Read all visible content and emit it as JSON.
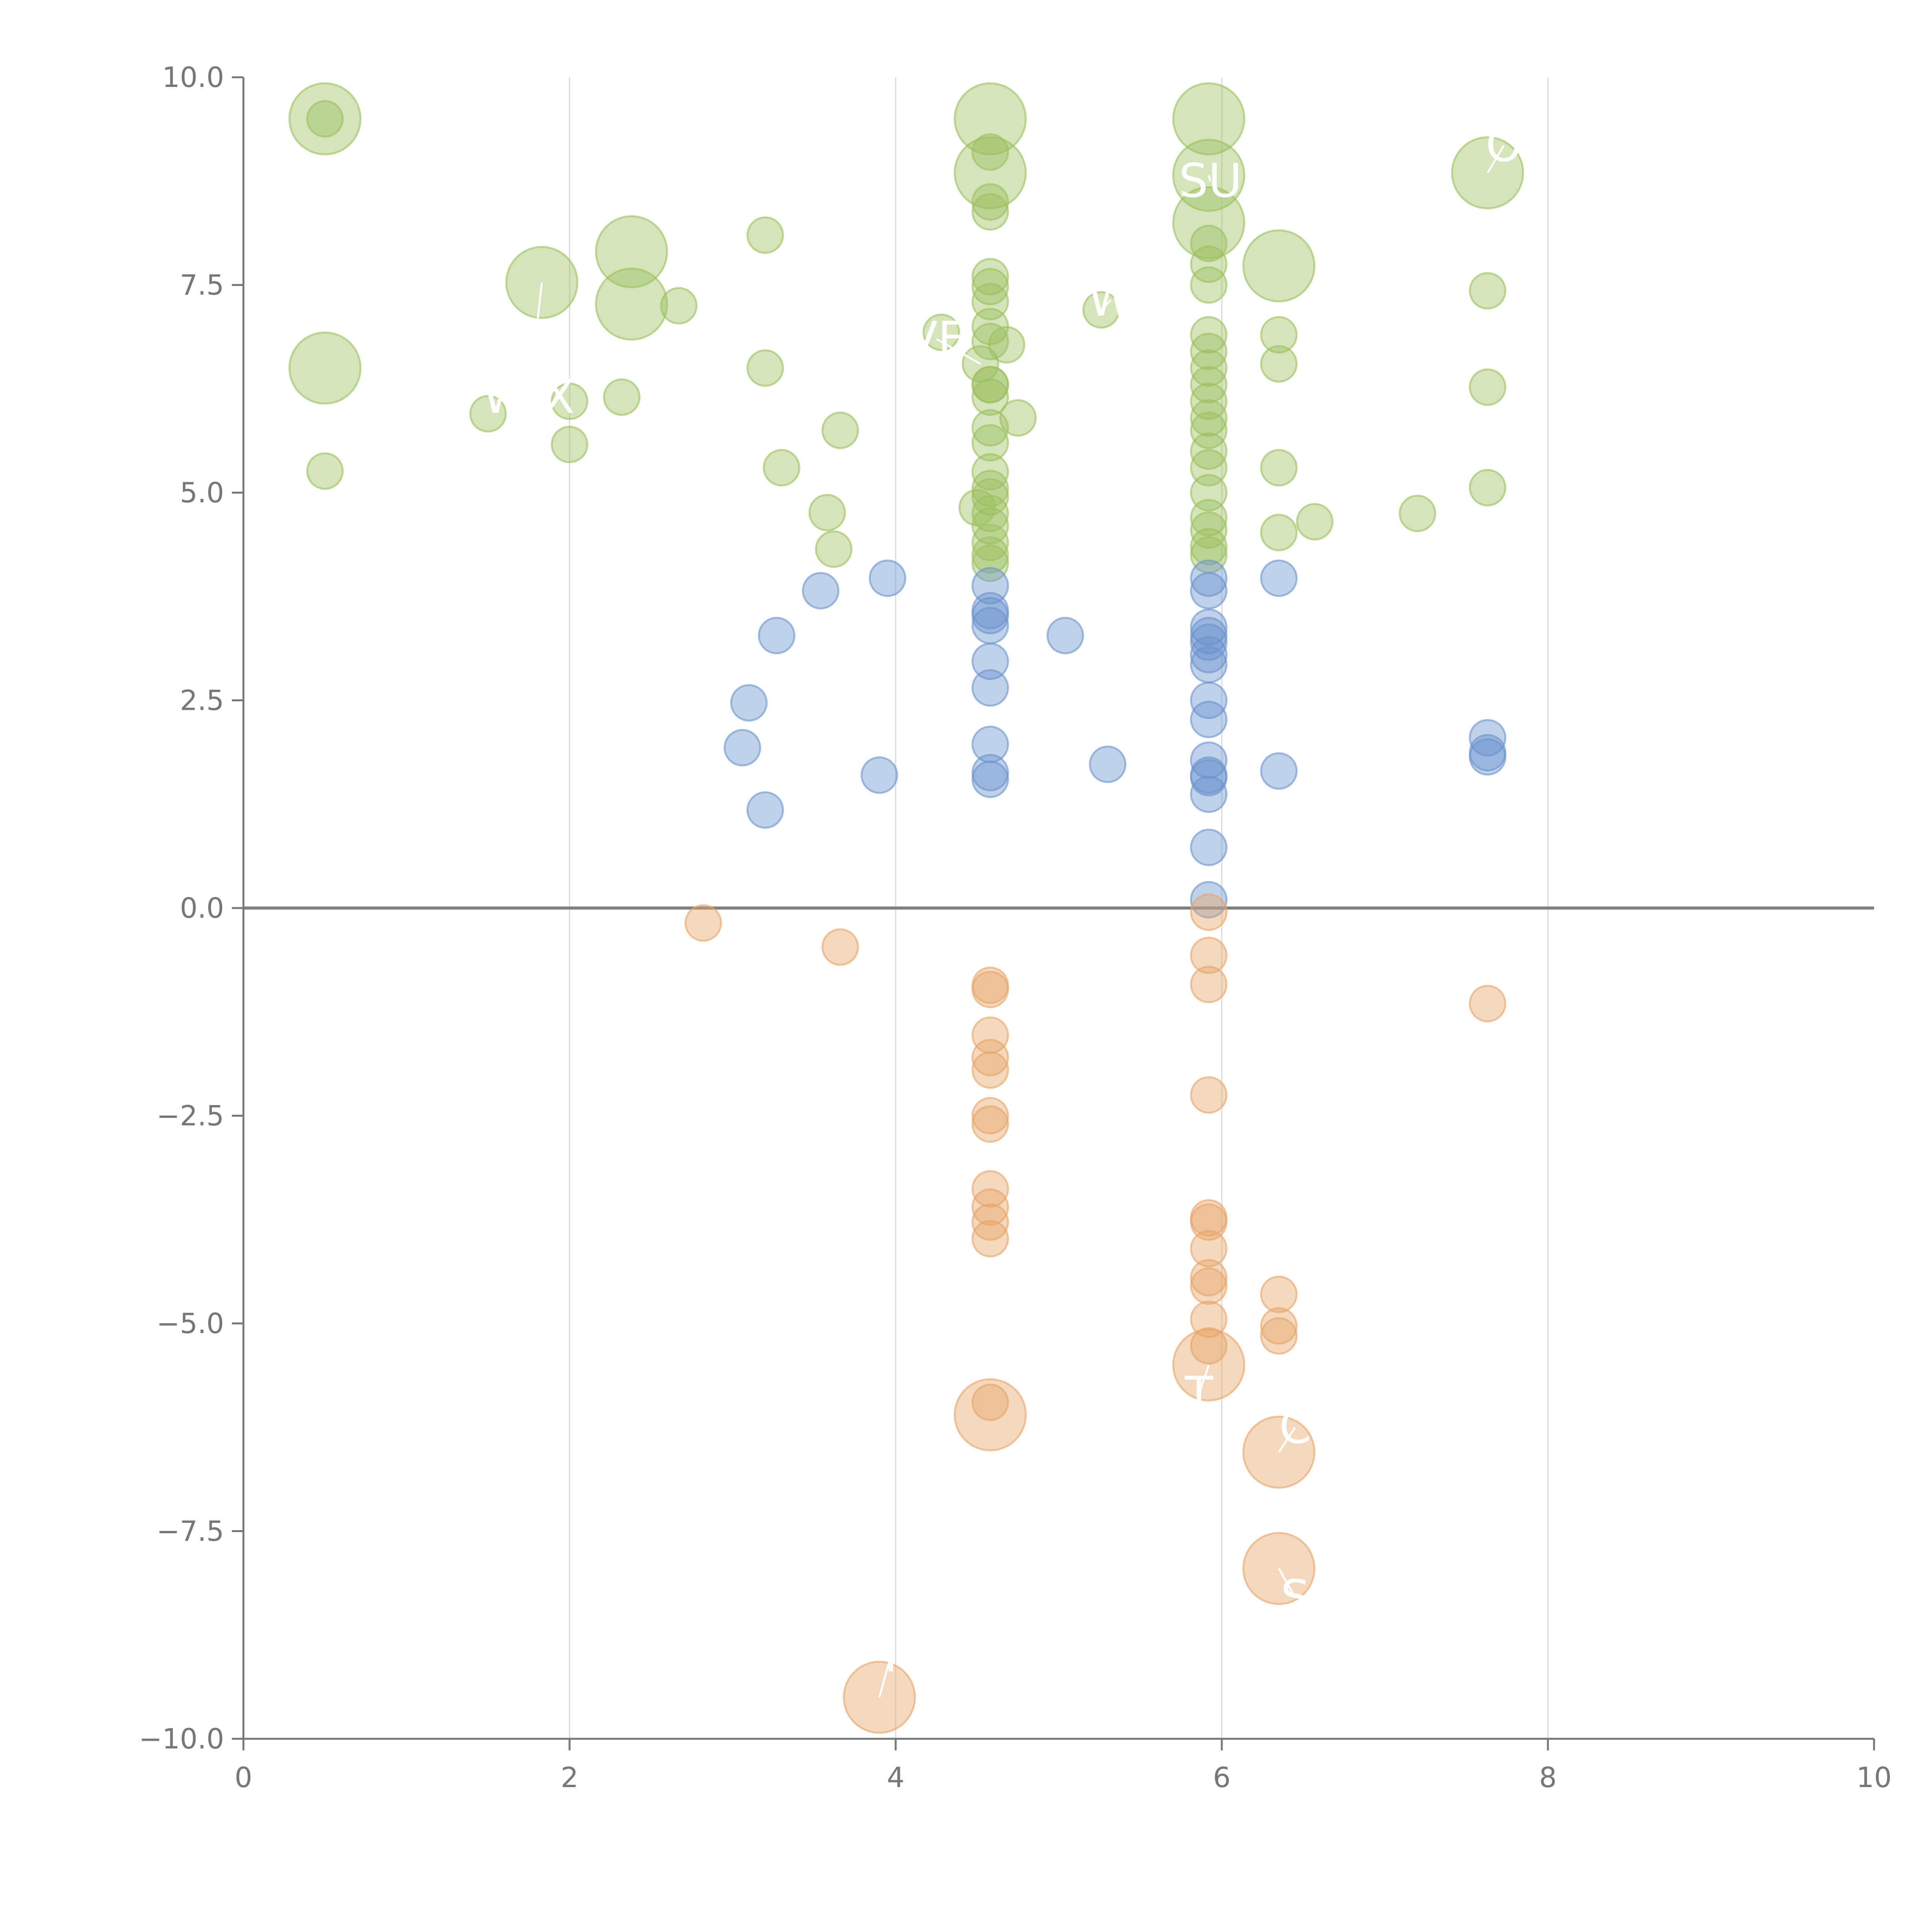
{
  "chart_data": {
    "type": "scatter",
    "title": "",
    "xlabel": "",
    "ylabel": "",
    "xlim": [
      0,
      10
    ],
    "ylim": [
      -10,
      10
    ],
    "x_ticks": [
      "0",
      "2",
      "4",
      "6",
      "8",
      "10"
    ],
    "y_ticks": [
      "10.0",
      "7.5",
      "5.0",
      "2.5",
      "0.0",
      "−2.5",
      "−5.0",
      "−7.5",
      "−10.0"
    ],
    "grid": "vertical lines at x ticks",
    "reference_line": {
      "y": 0
    },
    "colors": {
      "high": "#9bbf5c",
      "mid": "#6a92cc",
      "low": "#e8a467",
      "axis": "#777777",
      "grid": "#d9d9d9",
      "zero_line": "#808080"
    },
    "series": [
      {
        "group": "high",
        "points": [
          {
            "x": 0.5,
            "y": 9.5,
            "size": 3
          },
          {
            "x": 0.5,
            "y": 9.5,
            "size": 1
          },
          {
            "x": 0.5,
            "y": 6.5,
            "size": 3
          },
          {
            "x": 0.5,
            "y": 5.26,
            "size": 1
          },
          {
            "x": 1.5,
            "y": 5.95,
            "size": 1
          },
          {
            "x": 1.83,
            "y": 7.53,
            "size": 3
          },
          {
            "x": 2.0,
            "y": 6.1,
            "size": 1
          },
          {
            "x": 2.0,
            "y": 5.58,
            "size": 1
          },
          {
            "x": 2.32,
            "y": 6.15,
            "size": 1
          },
          {
            "x": 2.38,
            "y": 7.9,
            "size": 3
          },
          {
            "x": 2.38,
            "y": 7.27,
            "size": 3
          },
          {
            "x": 2.67,
            "y": 7.25,
            "size": 1
          },
          {
            "x": 3.2,
            "y": 8.1,
            "size": 1
          },
          {
            "x": 3.2,
            "y": 6.5,
            "size": 1
          },
          {
            "x": 3.3,
            "y": 5.3,
            "size": 1
          },
          {
            "x": 3.58,
            "y": 4.76,
            "size": 1
          },
          {
            "x": 3.62,
            "y": 4.32,
            "size": 1
          },
          {
            "x": 3.66,
            "y": 5.75,
            "size": 1
          },
          {
            "x": 4.28,
            "y": 6.93,
            "size": 1
          },
          {
            "x": 4.5,
            "y": 4.82,
            "size": 1
          },
          {
            "x": 4.52,
            "y": 6.55,
            "size": 1
          },
          {
            "x": 4.58,
            "y": 9.5,
            "size": 3
          },
          {
            "x": 4.58,
            "y": 8.85,
            "size": 3
          },
          {
            "x": 4.58,
            "y": 9.1,
            "size": 1
          },
          {
            "x": 4.58,
            "y": 8.5,
            "size": 1
          },
          {
            "x": 4.58,
            "y": 8.38,
            "size": 1
          },
          {
            "x": 4.58,
            "y": 7.6,
            "size": 1
          },
          {
            "x": 4.58,
            "y": 7.48,
            "size": 1
          },
          {
            "x": 4.58,
            "y": 7.3,
            "size": 1
          },
          {
            "x": 4.58,
            "y": 7.0,
            "size": 1
          },
          {
            "x": 4.58,
            "y": 6.82,
            "size": 1
          },
          {
            "x": 4.58,
            "y": 6.3,
            "size": 1
          },
          {
            "x": 4.58,
            "y": 6.15,
            "size": 1
          },
          {
            "x": 4.58,
            "y": 5.78,
            "size": 1
          },
          {
            "x": 4.58,
            "y": 5.6,
            "size": 1
          },
          {
            "x": 4.58,
            "y": 5.25,
            "size": 1
          },
          {
            "x": 4.58,
            "y": 5.05,
            "size": 1
          },
          {
            "x": 4.58,
            "y": 4.95,
            "size": 1
          },
          {
            "x": 4.58,
            "y": 4.75,
            "size": 1
          },
          {
            "x": 4.58,
            "y": 4.6,
            "size": 1
          },
          {
            "x": 4.58,
            "y": 4.4,
            "size": 1
          },
          {
            "x": 4.58,
            "y": 4.25,
            "size": 1
          },
          {
            "x": 4.58,
            "y": 4.15,
            "size": 1
          },
          {
            "x": 4.58,
            "y": 6.3,
            "size": 1
          },
          {
            "x": 4.68,
            "y": 6.78,
            "size": 1
          },
          {
            "x": 4.75,
            "y": 5.9,
            "size": 1
          },
          {
            "x": 5.26,
            "y": 7.2,
            "size": 1
          },
          {
            "x": 5.92,
            "y": 9.5,
            "size": 3
          },
          {
            "x": 5.92,
            "y": 8.82,
            "size": 3
          },
          {
            "x": 5.92,
            "y": 8.25,
            "size": 3
          },
          {
            "x": 5.92,
            "y": 8.0,
            "size": 1
          },
          {
            "x": 5.92,
            "y": 7.75,
            "size": 1
          },
          {
            "x": 5.92,
            "y": 7.5,
            "size": 1
          },
          {
            "x": 5.92,
            "y": 6.9,
            "size": 1
          },
          {
            "x": 5.92,
            "y": 6.7,
            "size": 1
          },
          {
            "x": 5.92,
            "y": 6.5,
            "size": 1
          },
          {
            "x": 5.92,
            "y": 6.3,
            "size": 1
          },
          {
            "x": 5.92,
            "y": 6.1,
            "size": 1
          },
          {
            "x": 5.92,
            "y": 5.9,
            "size": 1
          },
          {
            "x": 5.92,
            "y": 5.75,
            "size": 1
          },
          {
            "x": 5.92,
            "y": 5.5,
            "size": 1
          },
          {
            "x": 5.92,
            "y": 5.3,
            "size": 1
          },
          {
            "x": 5.92,
            "y": 5.0,
            "size": 1
          },
          {
            "x": 5.92,
            "y": 4.7,
            "size": 1
          },
          {
            "x": 5.92,
            "y": 4.55,
            "size": 1
          },
          {
            "x": 5.92,
            "y": 4.35,
            "size": 1
          },
          {
            "x": 5.92,
            "y": 4.25,
            "size": 1
          },
          {
            "x": 6.35,
            "y": 7.73,
            "size": 3
          },
          {
            "x": 6.35,
            "y": 6.9,
            "size": 1
          },
          {
            "x": 6.35,
            "y": 6.55,
            "size": 1
          },
          {
            "x": 6.35,
            "y": 5.3,
            "size": 1
          },
          {
            "x": 6.35,
            "y": 4.52,
            "size": 1
          },
          {
            "x": 6.57,
            "y": 4.65,
            "size": 1
          },
          {
            "x": 7.2,
            "y": 4.75,
            "size": 1
          },
          {
            "x": 7.63,
            "y": 8.85,
            "size": 3
          },
          {
            "x": 7.63,
            "y": 7.43,
            "size": 1
          },
          {
            "x": 7.63,
            "y": 6.27,
            "size": 1
          },
          {
            "x": 7.63,
            "y": 5.06,
            "size": 1
          }
        ]
      },
      {
        "group": "mid",
        "points": [
          {
            "x": 3.06,
            "y": 1.93,
            "size": 1
          },
          {
            "x": 3.1,
            "y": 2.47,
            "size": 1
          },
          {
            "x": 3.2,
            "y": 1.18,
            "size": 1
          },
          {
            "x": 3.27,
            "y": 3.28,
            "size": 1
          },
          {
            "x": 3.54,
            "y": 3.82,
            "size": 1
          },
          {
            "x": 3.9,
            "y": 1.6,
            "size": 1
          },
          {
            "x": 3.95,
            "y": 3.97,
            "size": 1
          },
          {
            "x": 4.58,
            "y": 3.88,
            "size": 1
          },
          {
            "x": 4.58,
            "y": 3.58,
            "size": 1
          },
          {
            "x": 4.58,
            "y": 3.52,
            "size": 1
          },
          {
            "x": 4.58,
            "y": 3.4,
            "size": 1
          },
          {
            "x": 4.58,
            "y": 2.97,
            "size": 1
          },
          {
            "x": 4.58,
            "y": 2.65,
            "size": 1
          },
          {
            "x": 4.58,
            "y": 1.97,
            "size": 1
          },
          {
            "x": 4.58,
            "y": 1.63,
            "size": 1
          },
          {
            "x": 4.58,
            "y": 1.55,
            "size": 1
          },
          {
            "x": 5.04,
            "y": 3.28,
            "size": 1
          },
          {
            "x": 5.3,
            "y": 1.73,
            "size": 1
          },
          {
            "x": 5.92,
            "y": 3.97,
            "size": 1
          },
          {
            "x": 5.92,
            "y": 3.82,
            "size": 1
          },
          {
            "x": 5.92,
            "y": 3.38,
            "size": 1
          },
          {
            "x": 5.92,
            "y": 3.28,
            "size": 1
          },
          {
            "x": 5.92,
            "y": 3.2,
            "size": 1
          },
          {
            "x": 5.92,
            "y": 3.05,
            "size": 1
          },
          {
            "x": 5.92,
            "y": 2.93,
            "size": 1
          },
          {
            "x": 5.92,
            "y": 2.5,
            "size": 1
          },
          {
            "x": 5.92,
            "y": 2.27,
            "size": 1
          },
          {
            "x": 5.92,
            "y": 1.78,
            "size": 1
          },
          {
            "x": 5.92,
            "y": 1.6,
            "size": 1
          },
          {
            "x": 5.92,
            "y": 1.57,
            "size": 1
          },
          {
            "x": 5.92,
            "y": 1.37,
            "size": 1
          },
          {
            "x": 5.92,
            "y": 0.73,
            "size": 1
          },
          {
            "x": 5.92,
            "y": 0.1,
            "size": 1
          },
          {
            "x": 6.35,
            "y": 3.97,
            "size": 1
          },
          {
            "x": 6.35,
            "y": 1.65,
            "size": 1
          },
          {
            "x": 7.63,
            "y": 2.05,
            "size": 1
          },
          {
            "x": 7.63,
            "y": 1.87,
            "size": 1
          },
          {
            "x": 7.63,
            "y": 1.82,
            "size": 1
          }
        ]
      },
      {
        "group": "low",
        "points": [
          {
            "x": 2.82,
            "y": -0.18,
            "size": 1
          },
          {
            "x": 3.66,
            "y": -0.47,
            "size": 1
          },
          {
            "x": 3.9,
            "y": -9.5,
            "size": 3
          },
          {
            "x": 4.58,
            "y": -0.93,
            "size": 1
          },
          {
            "x": 4.58,
            "y": -0.98,
            "size": 1
          },
          {
            "x": 4.58,
            "y": -1.53,
            "size": 1
          },
          {
            "x": 4.58,
            "y": -1.8,
            "size": 1
          },
          {
            "x": 4.58,
            "y": -1.95,
            "size": 1
          },
          {
            "x": 4.58,
            "y": -2.5,
            "size": 1
          },
          {
            "x": 4.58,
            "y": -2.6,
            "size": 1
          },
          {
            "x": 4.58,
            "y": -3.38,
            "size": 1
          },
          {
            "x": 4.58,
            "y": -3.6,
            "size": 1
          },
          {
            "x": 4.58,
            "y": -3.78,
            "size": 1
          },
          {
            "x": 4.58,
            "y": -3.98,
            "size": 1
          },
          {
            "x": 4.58,
            "y": -5.95,
            "size": 1
          },
          {
            "x": 4.58,
            "y": -6.1,
            "size": 3
          },
          {
            "x": 5.92,
            "y": -0.05,
            "size": 1
          },
          {
            "x": 5.92,
            "y": -0.57,
            "size": 1
          },
          {
            "x": 5.92,
            "y": -0.92,
            "size": 1
          },
          {
            "x": 5.92,
            "y": -2.25,
            "size": 1
          },
          {
            "x": 5.92,
            "y": -3.73,
            "size": 1
          },
          {
            "x": 5.92,
            "y": -3.78,
            "size": 1
          },
          {
            "x": 5.92,
            "y": -4.1,
            "size": 1
          },
          {
            "x": 5.92,
            "y": -4.45,
            "size": 1
          },
          {
            "x": 5.92,
            "y": -4.55,
            "size": 1
          },
          {
            "x": 5.92,
            "y": -4.95,
            "size": 1
          },
          {
            "x": 5.92,
            "y": -5.27,
            "size": 1
          },
          {
            "x": 5.92,
            "y": -5.5,
            "size": 3
          },
          {
            "x": 6.35,
            "y": -4.65,
            "size": 1
          },
          {
            "x": 6.35,
            "y": -5.03,
            "size": 1
          },
          {
            "x": 6.35,
            "y": -5.15,
            "size": 1
          },
          {
            "x": 6.35,
            "y": -6.55,
            "size": 3
          },
          {
            "x": 6.35,
            "y": -7.95,
            "size": 3
          },
          {
            "x": 7.63,
            "y": -1.15,
            "size": 1
          }
        ]
      }
    ],
    "annotations": [
      {
        "text": "SU",
        "x": 5.93,
        "y": 8.75,
        "target": [
          5.92,
          8.82
        ]
      },
      {
        "text": "VE",
        "x": 4.25,
        "y": 6.85,
        "target": [
          4.52,
          6.55
        ]
      },
      {
        "text": "W X",
        "x": 1.75,
        "y": 6.15,
        "target": [
          1.83,
          7.53
        ]
      },
      {
        "text": "W",
        "x": 5.32,
        "y": 7.32,
        "target": [
          5.26,
          7.2
        ]
      },
      {
        "text": "O",
        "x": 7.73,
        "y": 9.18,
        "target": [
          7.63,
          8.85
        ]
      },
      {
        "text": "T",
        "x": 5.86,
        "y": -5.85,
        "target": [
          5.92,
          -5.5
        ]
      },
      {
        "text": "S",
        "x": 6.45,
        "y": -8.3,
        "target": [
          6.35,
          -7.95
        ]
      },
      {
        "text": "C",
        "x": 6.45,
        "y": -6.25,
        "target": [
          6.35,
          -6.55
        ]
      },
      {
        "text": "I",
        "x": 3.97,
        "y": -9.0,
        "target": [
          3.9,
          -9.5
        ]
      }
    ]
  }
}
